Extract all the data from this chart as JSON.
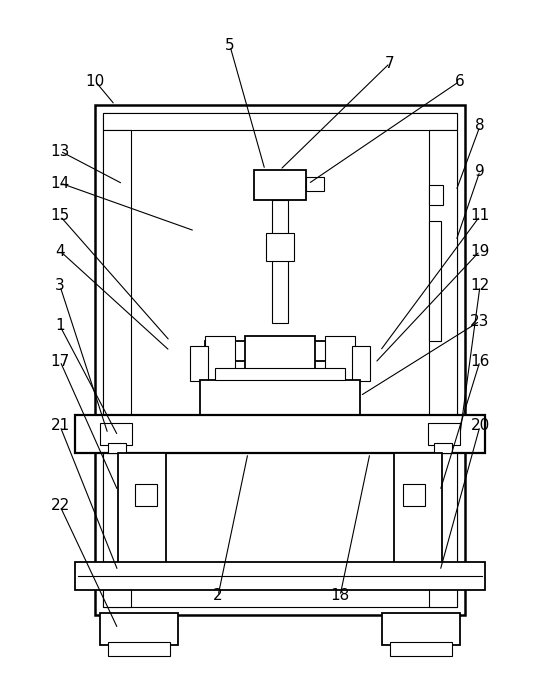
{
  "background_color": "#ffffff",
  "line_color": "#000000",
  "lw": 1.3,
  "tlw": 0.8,
  "fig_width": 5.6,
  "fig_height": 6.81,
  "label_fontsize": 11
}
